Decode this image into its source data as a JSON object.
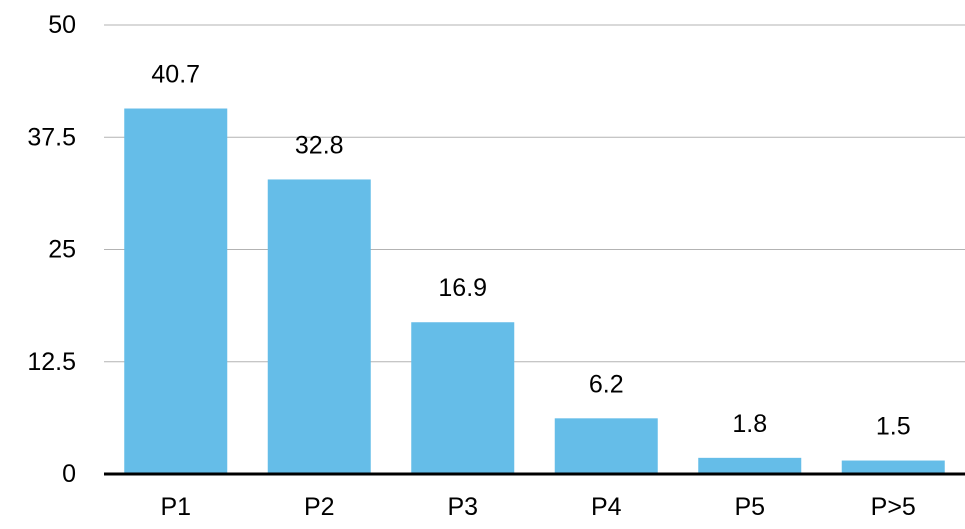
{
  "chart_data": {
    "type": "bar",
    "title": "",
    "xlabel": "",
    "ylabel": "",
    "categories": [
      "P1",
      "P2",
      "P3",
      "P4",
      "P5",
      "P>5"
    ],
    "values": [
      40.7,
      32.8,
      16.9,
      6.2,
      1.8,
      1.5
    ],
    "data_labels": [
      "40.7",
      "32.8",
      "16.9",
      "6.2",
      "1.8",
      "1.5"
    ],
    "ylim": [
      0,
      50
    ],
    "yticks": [
      0,
      12.5,
      25,
      37.5,
      50
    ],
    "ytick_labels": [
      "0",
      "12.5",
      "25",
      "37.5",
      "50"
    ],
    "grid": true,
    "legend": "none",
    "colors": {
      "bar": "#65bde8",
      "grid": "#b3b3b3",
      "axis": "#000000",
      "text": "#000000"
    }
  }
}
